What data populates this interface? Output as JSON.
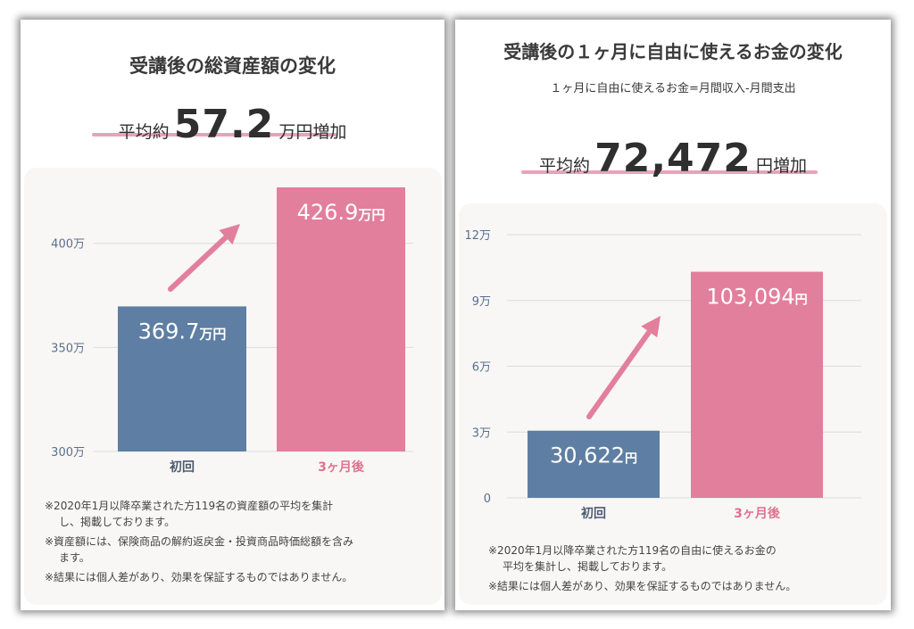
{
  "chart_data": [
    {
      "type": "bar",
      "title": "受講後の総資産額の変化",
      "average": {
        "prefix": "平均約",
        "value": "57.2",
        "suffix": "万円増加"
      },
      "categories": [
        "初回",
        "3ヶ月後"
      ],
      "values": [
        369.7,
        426.9
      ],
      "value_labels": [
        {
          "number": "369.7",
          "unit": "万円"
        },
        {
          "number": "426.9",
          "unit": "万円"
        }
      ],
      "ylim": [
        300,
        426.9
      ],
      "yticks": [
        300,
        350,
        400
      ],
      "ytick_labels": [
        "300万",
        "350万",
        "400万"
      ],
      "bar_colors": [
        "#5e7fa3",
        "#e27f9c"
      ],
      "notes": [
        "※2020年1月以降卒業された方119名の資産額の平均を集計",
        "し、掲載しております。",
        "※資産額には、保険商品の解約返戻金・投資商品時価総額を含み",
        "ます。",
        "※結果には個人差があり、効果を保証するものではありません。"
      ]
    },
    {
      "type": "bar",
      "title": "受講後の１ヶ月に自由に使えるお金の変化",
      "subtitle": "１ヶ月に自由に使えるお金=月間収入-月間支出",
      "average": {
        "prefix": "平均約",
        "value": "72,472",
        "suffix": "円増加"
      },
      "categories": [
        "初回",
        "3ヶ月後"
      ],
      "values": [
        30622,
        103094
      ],
      "value_labels": [
        {
          "number": "30,622",
          "unit": "円"
        },
        {
          "number": "103,094",
          "unit": "円"
        }
      ],
      "ylim": [
        0,
        120000
      ],
      "yticks": [
        0,
        30000,
        60000,
        90000,
        120000
      ],
      "ytick_labels": [
        "0",
        "3万",
        "6万",
        "9万",
        "12万"
      ],
      "bar_colors": [
        "#5e7fa3",
        "#e27f9c"
      ],
      "notes": [
        "※2020年1月以降卒業された方119名の自由に使えるお金の",
        "平均を集計し、掲載しております。",
        "※結果には個人差があり、効果を保証するものではありません。"
      ]
    }
  ],
  "colors": {
    "axis_text": "#5a6f8e",
    "gridline": "#d9dce2",
    "category_first": "#4d5b70",
    "category_second": "#e0708f",
    "arrow": "#e27f9c",
    "underline": "#e8a3b7"
  }
}
